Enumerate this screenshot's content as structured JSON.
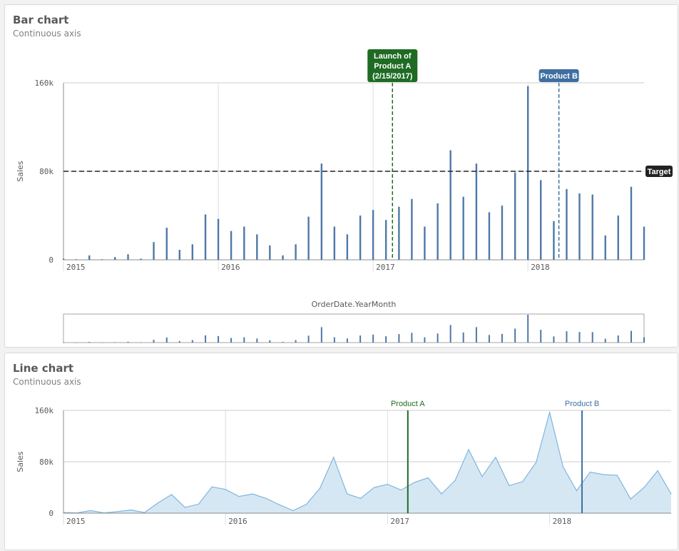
{
  "chart_data": [
    {
      "type": "bar",
      "title": "Bar chart",
      "subtitle": "Continuous axis",
      "xlabel": "OrderDate.YearMonth",
      "ylabel": "Sales",
      "ylim": [
        0,
        160000
      ],
      "yticks": [
        {
          "v": 0,
          "label": "0"
        },
        {
          "v": 80000,
          "label": "80k"
        },
        {
          "v": 160000,
          "label": "160k"
        }
      ],
      "xticks": [
        {
          "v": 2015,
          "label": "2015"
        },
        {
          "v": 2016,
          "label": "2016"
        },
        {
          "v": 2017,
          "label": "2017"
        },
        {
          "v": 2018,
          "label": "2018"
        }
      ],
      "xlim": [
        2015,
        2018.75
      ],
      "x": [
        2015.0,
        2015.083,
        2015.167,
        2015.25,
        2015.333,
        2015.417,
        2015.5,
        2015.583,
        2015.667,
        2015.75,
        2015.833,
        2015.917,
        2016.0,
        2016.083,
        2016.167,
        2016.25,
        2016.333,
        2016.417,
        2016.5,
        2016.583,
        2016.667,
        2016.75,
        2016.833,
        2016.917,
        2017.0,
        2017.083,
        2017.167,
        2017.25,
        2017.333,
        2017.417,
        2017.5,
        2017.583,
        2017.667,
        2017.75,
        2017.833,
        2017.917,
        2018.0,
        2018.083,
        2018.167,
        2018.25,
        2018.333,
        2018.417,
        2018.5,
        2018.583,
        2018.667,
        2018.75
      ],
      "values": [
        1000,
        500,
        4000,
        500,
        2500,
        5000,
        1000,
        16000,
        29000,
        9000,
        14000,
        41000,
        37000,
        26000,
        30000,
        23000,
        13000,
        4000,
        14000,
        39000,
        87000,
        30000,
        23000,
        40000,
        45000,
        36000,
        48000,
        55000,
        30000,
        51000,
        99000,
        57000,
        87000,
        43000,
        49000,
        79000,
        157000,
        72000,
        35000,
        64000,
        60000,
        59000,
        22000,
        40000,
        66000,
        30000
      ],
      "color": "#4e78a8",
      "reference_lines": [
        {
          "type": "horizontal",
          "value": 80000,
          "label": "Target",
          "color": "#222222"
        },
        {
          "type": "vertical",
          "value": 2017.125,
          "label": [
            "Launch of",
            "Product A",
            "(2/15/2017)"
          ],
          "color": "#1f6b24"
        },
        {
          "type": "vertical",
          "value": 2018.2,
          "label": [
            "Product B"
          ],
          "color": "#3f6fa1"
        }
      ]
    },
    {
      "type": "area",
      "title": "Line chart",
      "subtitle": "Continuous axis",
      "xlabel": "",
      "ylabel": "Sales",
      "ylim": [
        0,
        160000
      ],
      "yticks": [
        {
          "v": 0,
          "label": "0"
        },
        {
          "v": 80000,
          "label": "80k"
        },
        {
          "v": 160000,
          "label": "160k"
        }
      ],
      "xticks": [
        {
          "v": 2015,
          "label": "2015"
        },
        {
          "v": 2016,
          "label": "2016"
        },
        {
          "v": 2017,
          "label": "2017"
        },
        {
          "v": 2018,
          "label": "2018"
        }
      ],
      "xlim": [
        2015,
        2018.75
      ],
      "x": [
        2015.0,
        2015.083,
        2015.167,
        2015.25,
        2015.333,
        2015.417,
        2015.5,
        2015.583,
        2015.667,
        2015.75,
        2015.833,
        2015.917,
        2016.0,
        2016.083,
        2016.167,
        2016.25,
        2016.333,
        2016.417,
        2016.5,
        2016.583,
        2016.667,
        2016.75,
        2016.833,
        2016.917,
        2017.0,
        2017.083,
        2017.167,
        2017.25,
        2017.333,
        2017.417,
        2017.5,
        2017.583,
        2017.667,
        2017.75,
        2017.833,
        2017.917,
        2018.0,
        2018.083,
        2018.167,
        2018.25,
        2018.333,
        2018.417,
        2018.5,
        2018.583,
        2018.667,
        2018.75
      ],
      "values": [
        1000,
        500,
        4000,
        500,
        2500,
        5000,
        1000,
        16000,
        29000,
        9000,
        14000,
        41000,
        37000,
        26000,
        30000,
        23000,
        13000,
        4000,
        14000,
        39000,
        87000,
        30000,
        23000,
        40000,
        45000,
        36000,
        48000,
        55000,
        30000,
        51000,
        99000,
        57000,
        87000,
        43000,
        49000,
        79000,
        157000,
        72000,
        35000,
        64000,
        60000,
        59000,
        22000,
        40000,
        66000,
        30000
      ],
      "color": "#7fb6dc",
      "fill": "#d6e7f4",
      "reference_lines": [
        {
          "type": "vertical",
          "value": 2017.125,
          "label": [
            "Product A"
          ],
          "color": "#1f6b24"
        },
        {
          "type": "vertical",
          "value": 2018.2,
          "label": [
            "Product B"
          ],
          "color": "#3f6fa1"
        }
      ]
    }
  ]
}
